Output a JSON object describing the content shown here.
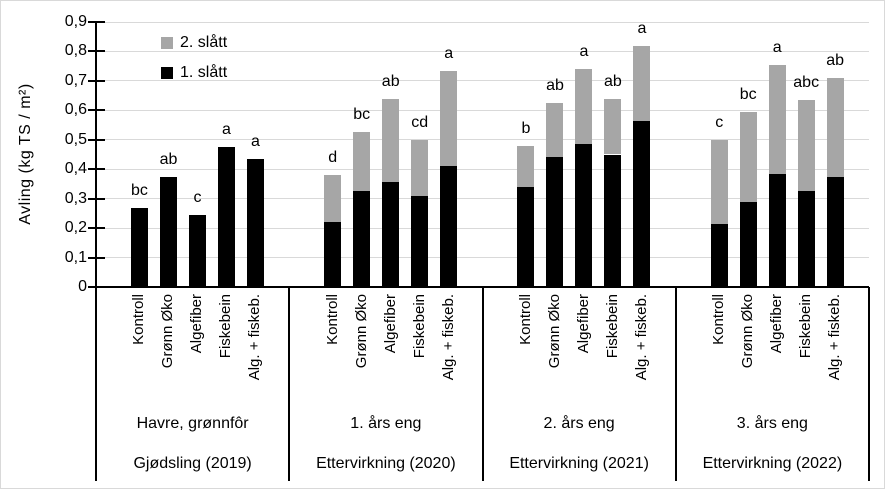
{
  "figure": {
    "background": "#ffffff",
    "border_color": "#d9d9d9"
  },
  "chart_data": {
    "type": "bar",
    "stacked": true,
    "title": "",
    "ylabel": "Avling (kg TS / m²)",
    "xlabel": "",
    "ylim": [
      0,
      0.9
    ],
    "ytick_step": 0.1,
    "ytick_labels": [
      "0",
      "0,1",
      "0,2",
      "0,3",
      "0,4",
      "0,5",
      "0,6",
      "0,7",
      "0,8",
      "0,9"
    ],
    "grid": true,
    "decimal_separator": ",",
    "legend_position": "top-left-inside",
    "legend_entries": [
      {
        "label": "2. slått",
        "color": "#a6a6a6"
      },
      {
        "label": "1. slått",
        "color": "#000000"
      }
    ],
    "series_names": [
      "1. slått",
      "2. slått"
    ],
    "categories": [
      "Kontroll",
      "Grønn Øko",
      "Algefiber",
      "Fiskebein",
      "Alg. + fiskeb."
    ],
    "colors": {
      "slatt1": "#000000",
      "slatt2": "#a6a6a6",
      "gridline": "#d9d9d9",
      "axis": "#000000"
    },
    "groups": [
      {
        "title": "Havre, grønnfôr",
        "subtitle": "Gjødsling (2019)",
        "bars": [
          {
            "category": "Kontroll",
            "slatt1": 0.27,
            "slatt2": 0,
            "total": 0.27,
            "letter": "bc"
          },
          {
            "category": "Grønn Øko",
            "slatt1": 0.375,
            "slatt2": 0,
            "total": 0.375,
            "letter": "ab"
          },
          {
            "category": "Algefiber",
            "slatt1": 0.245,
            "slatt2": 0,
            "total": 0.245,
            "letter": "c"
          },
          {
            "category": "Fiskebein",
            "slatt1": 0.475,
            "slatt2": 0,
            "total": 0.475,
            "letter": "a"
          },
          {
            "category": "Alg. + fiskeb.",
            "slatt1": 0.435,
            "slatt2": 0,
            "total": 0.435,
            "letter": "a"
          }
        ]
      },
      {
        "title": "1. års eng",
        "subtitle": "Ettervirkning (2020)",
        "bars": [
          {
            "category": "Kontroll",
            "slatt1": 0.22,
            "slatt2": 0.16,
            "total": 0.38,
            "letter": "d"
          },
          {
            "category": "Grønn Øko",
            "slatt1": 0.325,
            "slatt2": 0.2,
            "total": 0.525,
            "letter": "bc"
          },
          {
            "category": "Algefiber",
            "slatt1": 0.355,
            "slatt2": 0.285,
            "total": 0.64,
            "letter": "ab"
          },
          {
            "category": "Fiskebein",
            "slatt1": 0.31,
            "slatt2": 0.19,
            "total": 0.5,
            "letter": "cd"
          },
          {
            "category": "Alg. + fiskeb.",
            "slatt1": 0.41,
            "slatt2": 0.325,
            "total": 0.735,
            "letter": "a"
          }
        ]
      },
      {
        "title": "2. års eng",
        "subtitle": "Ettervirkning (2021)",
        "bars": [
          {
            "category": "Kontroll",
            "slatt1": 0.34,
            "slatt2": 0.14,
            "total": 0.48,
            "letter": "b"
          },
          {
            "category": "Grønn Øko",
            "slatt1": 0.44,
            "slatt2": 0.185,
            "total": 0.625,
            "letter": "ab"
          },
          {
            "category": "Algefiber",
            "slatt1": 0.485,
            "slatt2": 0.255,
            "total": 0.74,
            "letter": "a"
          },
          {
            "category": "Fiskebein",
            "slatt1": 0.45,
            "slatt2": 0.19,
            "total": 0.64,
            "letter": "ab"
          },
          {
            "category": "Alg. + fiskeb.",
            "slatt1": 0.565,
            "slatt2": 0.255,
            "total": 0.82,
            "letter": "a"
          }
        ]
      },
      {
        "title": "3. års eng",
        "subtitle": "Ettervirkning (2022)",
        "bars": [
          {
            "category": "Kontroll",
            "slatt1": 0.215,
            "slatt2": 0.285,
            "total": 0.5,
            "letter": "c"
          },
          {
            "category": "Grønn Øko",
            "slatt1": 0.29,
            "slatt2": 0.305,
            "total": 0.595,
            "letter": "bc"
          },
          {
            "category": "Algefiber",
            "slatt1": 0.385,
            "slatt2": 0.37,
            "total": 0.755,
            "letter": "a"
          },
          {
            "category": "Fiskebein",
            "slatt1": 0.325,
            "slatt2": 0.31,
            "total": 0.635,
            "letter": "abc"
          },
          {
            "category": "Alg. + fiskeb.",
            "slatt1": 0.375,
            "slatt2": 0.335,
            "total": 0.71,
            "letter": "ab"
          }
        ]
      }
    ]
  }
}
